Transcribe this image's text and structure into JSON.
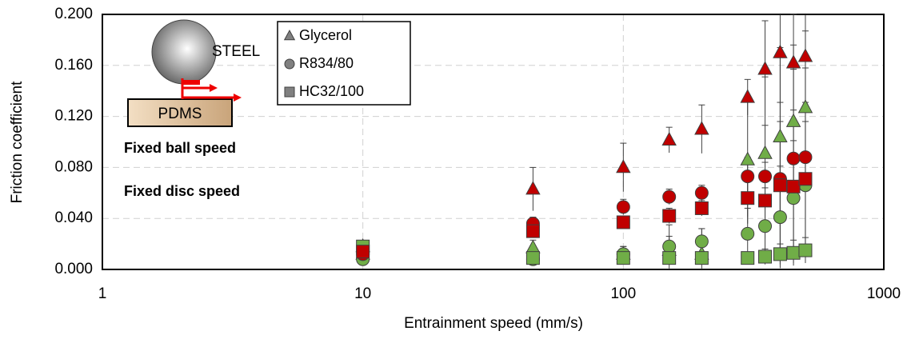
{
  "chart_data": {
    "type": "scatter",
    "x_label": "Entrainment speed (mm/s)",
    "y_label": "Friction coefficient",
    "xlim": [
      1,
      1000
    ],
    "xticks": [
      1,
      10,
      100,
      1000
    ],
    "x_scale": "log",
    "ylim": [
      0,
      0.2
    ],
    "yticks": [
      {
        "value": 0,
        "label": "0.000"
      },
      {
        "value": 0.04,
        "label": "0.040"
      },
      {
        "value": 0.08,
        "label": "0.080"
      },
      {
        "value": 0.12,
        "label": "0.120"
      },
      {
        "value": 0.16,
        "label": "0.160"
      },
      {
        "value": 0.2,
        "label": "0.200"
      }
    ],
    "grid": true,
    "x": [
      10,
      45,
      100,
      150,
      200,
      300,
      350,
      400,
      450,
      500
    ],
    "legend": [
      {
        "name": "Glycerol",
        "marker": "triangle"
      },
      {
        "name": "R834/80",
        "marker": "circle"
      },
      {
        "name": "HC32/100",
        "marker": "square"
      }
    ],
    "legend_color": "#808080",
    "annotations": [
      {
        "text": "Fixed ball speed",
        "color": "#c00000"
      },
      {
        "text": "Fixed disc speed",
        "color": "#70ad47"
      }
    ],
    "inset_labels": [
      "STEEL",
      "PDMS"
    ],
    "series": [
      {
        "marker": "triangle",
        "color": "#70ad47",
        "values": [
          0.018,
          0.017,
          0.012,
          0.015,
          0.012,
          0.086,
          0.091,
          0.104,
          0.116,
          0.127
        ],
        "errors": [
          0.003,
          0.006,
          0.006,
          0.02,
          0.02,
          0.05,
          0.06,
          0.07,
          0.06,
          0.06
        ]
      },
      {
        "marker": "triangle",
        "color": "#c00000",
        "values": [
          0.012,
          0.063,
          0.08,
          0.1015,
          0.11,
          0.135,
          0.157,
          0.17,
          0.162,
          0.167
        ],
        "errors": [
          0.002,
          0.017,
          0.019,
          0.01,
          0.019,
          0.014,
          0.038,
          0.04,
          0.038,
          0.035
        ]
      },
      {
        "marker": "circle",
        "color": "#70ad47",
        "values": [
          0.008,
          0.008,
          0.012,
          0.018,
          0.022,
          0.028,
          0.034,
          0.041,
          0.056,
          0.066
        ],
        "errors": [
          0.002,
          0.003,
          0.006,
          0.008,
          0.01,
          0.02,
          0.03,
          0.04,
          0.045,
          0.05
        ]
      },
      {
        "marker": "circle",
        "color": "#c00000",
        "values": [
          0.012,
          0.036,
          0.049,
          0.057,
          0.06,
          0.073,
          0.073,
          0.071,
          0.087,
          0.088
        ],
        "errors": [
          0.002,
          0.005,
          0.006,
          0.006,
          0.006,
          0.015,
          0.04,
          0.06,
          0.07,
          0.07
        ]
      },
      {
        "marker": "square",
        "color": "#70ad47",
        "values": [
          0.018,
          0.009,
          0.009,
          0.009,
          0.009,
          0.009,
          0.01,
          0.012,
          0.013,
          0.015
        ],
        "errors": [
          0.004,
          0.002,
          0.003,
          0.003,
          0.003,
          0.004,
          0.006,
          0.008,
          0.01,
          0.01
        ]
      },
      {
        "marker": "square",
        "color": "#c00000",
        "values": [
          0.014,
          0.03,
          0.037,
          0.042,
          0.048,
          0.056,
          0.054,
          0.066,
          0.065,
          0.071
        ],
        "errors": [
          0.002,
          0.005,
          0.005,
          0.006,
          0.006,
          0.015,
          0.03,
          0.05,
          0.06,
          0.06
        ]
      }
    ]
  }
}
